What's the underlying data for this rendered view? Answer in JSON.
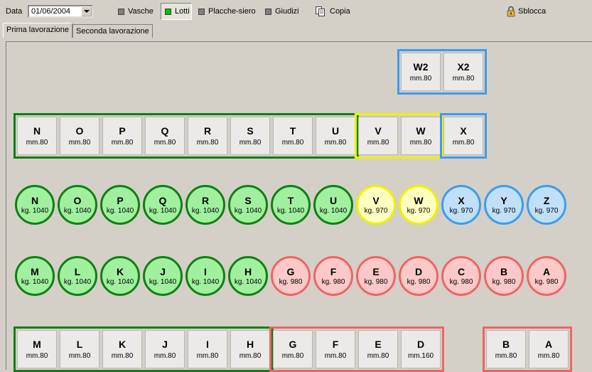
{
  "toolbar": {
    "date_label": "Data",
    "date_value": "01/06/2004",
    "items": [
      {
        "label": "Vasche",
        "color": "#808080"
      },
      {
        "label": "Lotti",
        "color": "#00c000"
      },
      {
        "label": "Placche-siero",
        "color": "#808080"
      },
      {
        "label": "Giudizi",
        "color": "#808080"
      }
    ],
    "copy_label": "Copia",
    "unlock_label": "Sblocca"
  },
  "tabs": [
    "Prima lavorazione",
    "Seconda lavorazione"
  ],
  "colors": {
    "green_border": "#108010",
    "green_fill": "#a0f0a0",
    "yellow_border": "#f0f000",
    "yellow_fill": "#ffffc0",
    "blue_border": "#3c9cf0",
    "blue_fill": "#c0e0fa",
    "red_border": "#f06464",
    "red_fill": "#fcc8c8"
  },
  "top_groups": [
    {
      "color": "blue",
      "items": [
        {
          "l": "W2",
          "s": "mm.80"
        },
        {
          "l": "X2",
          "s": "mm.80"
        }
      ]
    }
  ],
  "row1_groups": [
    {
      "color": "green",
      "items": [
        {
          "l": "N",
          "s": "mm.80"
        },
        {
          "l": "O",
          "s": "mm.80"
        },
        {
          "l": "P",
          "s": "mm.80"
        },
        {
          "l": "Q",
          "s": "mm.80"
        },
        {
          "l": "R",
          "s": "mm.80"
        },
        {
          "l": "S",
          "s": "mm.80"
        },
        {
          "l": "T",
          "s": "mm.80"
        },
        {
          "l": "U",
          "s": "mm.80"
        }
      ]
    },
    {
      "color": "yellow",
      "items": [
        {
          "l": "V",
          "s": "mm.80"
        },
        {
          "l": "W",
          "s": "mm.80"
        }
      ]
    },
    {
      "color": "blue",
      "items": [
        {
          "l": "X",
          "s": "mm.80"
        }
      ]
    }
  ],
  "circles_row1": [
    {
      "l": "N",
      "s": "kg. 1040",
      "color": "green"
    },
    {
      "l": "O",
      "s": "kg. 1040",
      "color": "green"
    },
    {
      "l": "P",
      "s": "kg. 1040",
      "color": "green"
    },
    {
      "l": "Q",
      "s": "kg. 1040",
      "color": "green"
    },
    {
      "l": "R",
      "s": "kg. 1040",
      "color": "green"
    },
    {
      "l": "S",
      "s": "kg. 1040",
      "color": "green"
    },
    {
      "l": "T",
      "s": "kg. 1040",
      "color": "green"
    },
    {
      "l": "U",
      "s": "kg. 1040",
      "color": "green"
    },
    {
      "l": "V",
      "s": "kg. 970",
      "color": "yellow"
    },
    {
      "l": "W",
      "s": "kg. 970",
      "color": "yellow"
    },
    {
      "l": "X",
      "s": "kg. 970",
      "color": "blue"
    },
    {
      "l": "Y",
      "s": "kg. 970",
      "color": "blue"
    },
    {
      "l": "Z",
      "s": "kg. 970",
      "color": "blue"
    }
  ],
  "circles_row2": [
    {
      "l": "M",
      "s": "kg. 1040",
      "color": "green"
    },
    {
      "l": "L",
      "s": "kg. 1040",
      "color": "green"
    },
    {
      "l": "K",
      "s": "kg. 1040",
      "color": "green"
    },
    {
      "l": "J",
      "s": "kg. 1040",
      "color": "green"
    },
    {
      "l": "I",
      "s": "kg. 1040",
      "color": "green"
    },
    {
      "l": "H",
      "s": "kg. 1040",
      "color": "green"
    },
    {
      "l": "G",
      "s": "kg. 980",
      "color": "red"
    },
    {
      "l": "F",
      "s": "kg. 980",
      "color": "red"
    },
    {
      "l": "E",
      "s": "kg. 980",
      "color": "red"
    },
    {
      "l": "D",
      "s": "kg. 980",
      "color": "red"
    },
    {
      "l": "C",
      "s": "kg. 980",
      "color": "red"
    },
    {
      "l": "B",
      "s": "kg. 980",
      "color": "red"
    },
    {
      "l": "A",
      "s": "kg. 980",
      "color": "red"
    }
  ],
  "bottom_groups": [
    {
      "color": "green",
      "items": [
        {
          "l": "M",
          "s": "mm.80"
        },
        {
          "l": "L",
          "s": "mm.80"
        },
        {
          "l": "K",
          "s": "mm.80"
        },
        {
          "l": "J",
          "s": "mm.80"
        },
        {
          "l": "I",
          "s": "mm.80"
        },
        {
          "l": "H",
          "s": "mm.80"
        }
      ]
    },
    {
      "color": "red",
      "items": [
        {
          "l": "G",
          "s": "mm.80"
        },
        {
          "l": "F",
          "s": "mm.80"
        },
        {
          "l": "E",
          "s": "mm.80"
        },
        {
          "l": "D",
          "s": "mm.160"
        }
      ]
    },
    {
      "color": "red",
      "items": [
        {
          "l": "B",
          "s": "mm.80"
        },
        {
          "l": "A",
          "s": "mm.80"
        }
      ]
    }
  ]
}
